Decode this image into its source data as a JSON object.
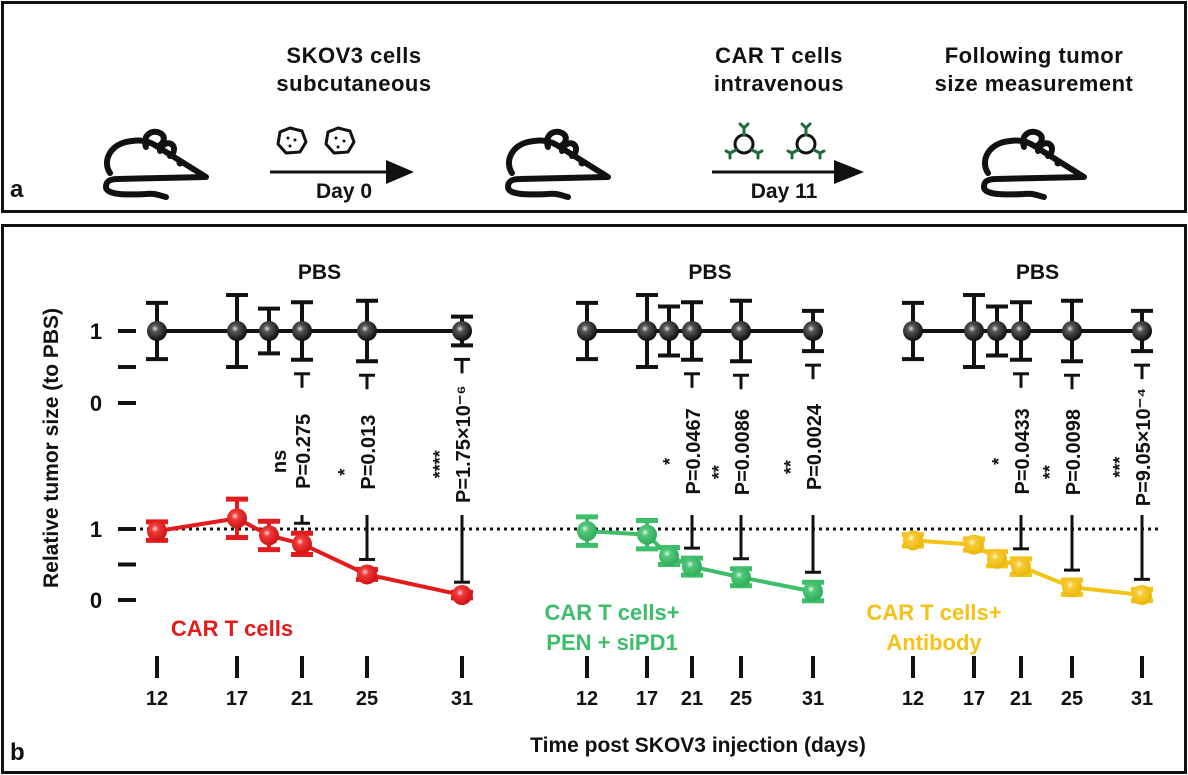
{
  "panel_a": {
    "label": "a",
    "steps": [
      {
        "title_line1": "SKOV3 cells",
        "title_line2": "subcutaneous",
        "day": "Day 0",
        "icon": "tumor-cell-icon"
      },
      {
        "title_line1": "CAR T cells",
        "title_line2": "intravenous",
        "day": "Day 11",
        "icon": "car-t-cell-icon"
      },
      {
        "title_line1": "Following tumor",
        "title_line2": "size measurement",
        "day": "",
        "icon": "mouse-icon"
      }
    ],
    "colors": {
      "antibody_receptor": "#1e6b3a"
    }
  },
  "panel_b": {
    "label": "b"
  },
  "chart_data": {
    "type": "line",
    "ylabel": "Relative tumor size (to PBS)",
    "xlabel": "Time post SKOV3 injection (days)",
    "x_ticks": [
      12,
      17,
      21,
      25,
      31
    ],
    "x_days": [
      12,
      17,
      19,
      21,
      25,
      31
    ],
    "reference_line": 1,
    "top_ylim": [
      0,
      1
    ],
    "bottom_ylim": [
      0,
      1
    ],
    "y_tick_labels": [
      "0",
      "1"
    ],
    "panels": [
      {
        "pbs_label": "PBS",
        "pbs": {
          "name": "PBS",
          "color": "#111111",
          "values": [
            1,
            1,
            1,
            1,
            1,
            1
          ],
          "errors": [
            0.39,
            0.5,
            0.31,
            0.4,
            0.42,
            0.2
          ]
        },
        "treatment": {
          "name_line1": "CAR T cells",
          "name_line2": "",
          "color": "#e31b1b",
          "values": [
            0.97,
            1.15,
            0.91,
            0.79,
            0.36,
            0.07
          ],
          "errors": [
            0.13,
            0.27,
            0.2,
            0.15,
            0.07,
            0.04
          ]
        },
        "comparisons": [
          {
            "day": 21,
            "p": "P=0.275",
            "sig": "ns"
          },
          {
            "day": 25,
            "p": "P=0.013",
            "sig": "*"
          },
          {
            "day": 31,
            "p": "P=1.75×10⁻⁶",
            "sig": "****"
          }
        ]
      },
      {
        "pbs_label": "PBS",
        "pbs": {
          "name": "PBS",
          "color": "#111111",
          "values": [
            1,
            1,
            1,
            1,
            1,
            1
          ],
          "errors": [
            0.39,
            0.5,
            0.34,
            0.4,
            0.42,
            0.28
          ]
        },
        "treatment": {
          "name_line1": "CAR T cells+",
          "name_line2": "PEN + siPD1",
          "color": "#3dbf6a",
          "values": [
            0.97,
            0.92,
            0.62,
            0.47,
            0.32,
            0.12
          ],
          "errors": [
            0.2,
            0.2,
            0.12,
            0.12,
            0.12,
            0.13
          ]
        },
        "comparisons": [
          {
            "day": 21,
            "p": "P=0.0467",
            "sig": "*"
          },
          {
            "day": 25,
            "p": "P=0.0086",
            "sig": "**"
          },
          {
            "day": 31,
            "p": "P=0.0024",
            "sig": "**"
          }
        ]
      },
      {
        "pbs_label": "PBS",
        "pbs": {
          "name": "PBS",
          "color": "#111111",
          "values": [
            1,
            1,
            1,
            1,
            1,
            1
          ],
          "errors": [
            0.39,
            0.5,
            0.34,
            0.4,
            0.42,
            0.28
          ]
        },
        "treatment": {
          "name_line1": "CAR T cells+",
          "name_line2": "Antibody",
          "color": "#f5c217",
          "values": [
            0.84,
            0.78,
            0.58,
            0.47,
            0.18,
            0.07
          ],
          "errors": [
            0.08,
            0.08,
            0.1,
            0.11,
            0.1,
            0.08
          ]
        },
        "comparisons": [
          {
            "day": 21,
            "p": "P=0.0433",
            "sig": "*"
          },
          {
            "day": 25,
            "p": "P=0.0098",
            "sig": "**"
          },
          {
            "day": 31,
            "p": "P=9.05×10⁻⁴",
            "sig": "***"
          }
        ]
      }
    ]
  }
}
